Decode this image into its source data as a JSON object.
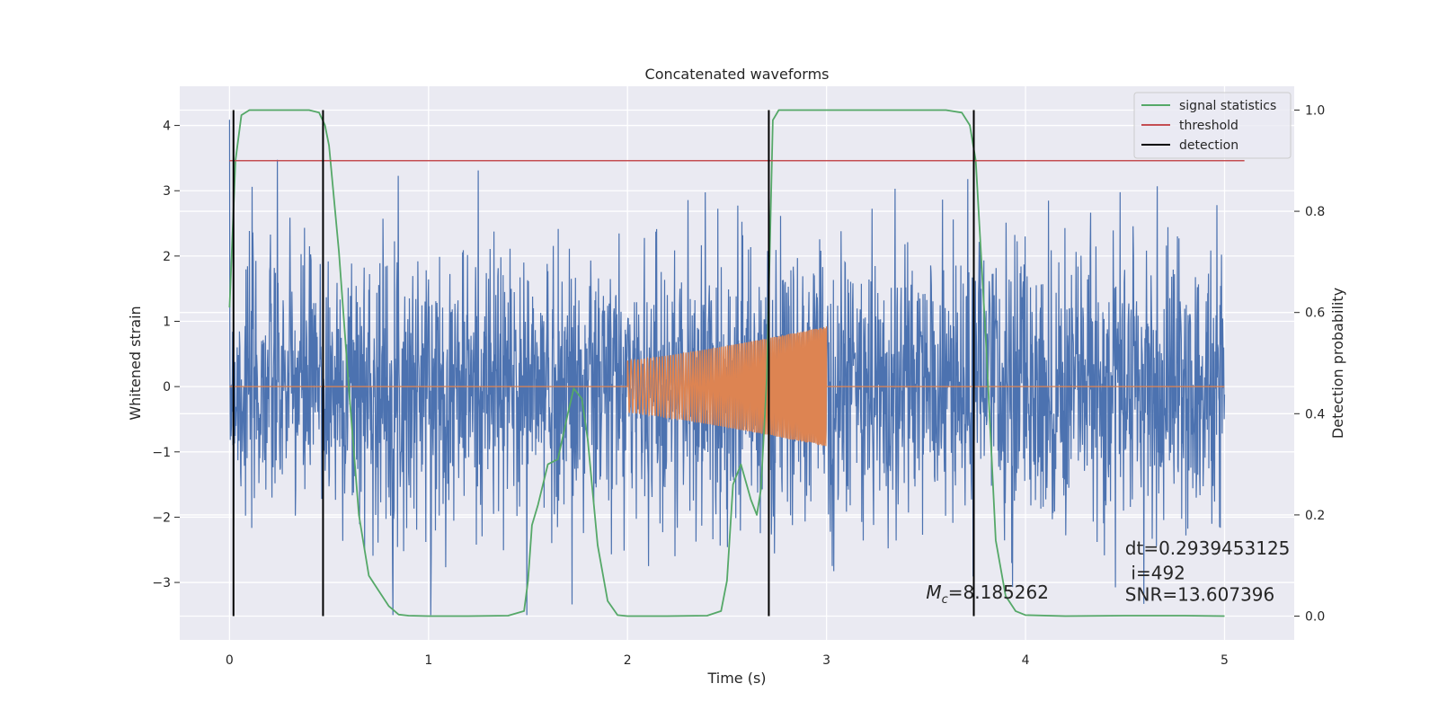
{
  "chart_data": {
    "type": "line",
    "title": "Concatenated waveforms",
    "xlabel": "Time (s)",
    "ylabel": "Whitened strain",
    "ylabel_right": "Detection probability",
    "xlim": [
      -0.25,
      5.35
    ],
    "ylim": [
      -3.88,
      4.6
    ],
    "ylim_right": [
      -0.047,
      1.047
    ],
    "x_ticks": [
      0,
      1,
      2,
      3,
      4,
      5
    ],
    "y_ticks": [
      -3,
      -2,
      -1,
      0,
      1,
      2,
      3,
      4
    ],
    "y_ticks_right": [
      0.0,
      0.2,
      0.4,
      0.6,
      0.8,
      1.0
    ],
    "x_tick_labels": [
      "0",
      "1",
      "2",
      "3",
      "4",
      "5"
    ],
    "y_tick_labels": [
      "−3",
      "−2",
      "−1",
      "0",
      "1",
      "2",
      "3",
      "4"
    ],
    "y_tick_labels_right": [
      "0.0",
      "0.2",
      "0.4",
      "0.6",
      "0.8",
      "1.0"
    ],
    "grid": true,
    "legend_position": "top-right",
    "legend": [
      {
        "label": "signal statistics",
        "color": "#55a868"
      },
      {
        "label": "threshold",
        "color": "#c44e52"
      },
      {
        "label": "detection",
        "color": "#000000"
      }
    ],
    "series": [
      {
        "name": "signal statistics",
        "axis": "right",
        "color": "#55a868",
        "x": [
          0.0,
          0.03,
          0.06,
          0.1,
          0.2,
          0.3,
          0.4,
          0.45,
          0.48,
          0.5,
          0.55,
          0.6,
          0.65,
          0.7,
          0.75,
          0.8,
          0.85,
          0.9,
          1.0,
          1.2,
          1.4,
          1.48,
          1.5,
          1.52,
          1.55,
          1.6,
          1.65,
          1.7,
          1.73,
          1.77,
          1.8,
          1.85,
          1.9,
          1.95,
          2.0,
          2.2,
          2.4,
          2.47,
          2.5,
          2.53,
          2.57,
          2.62,
          2.65,
          2.67,
          2.7,
          2.73,
          2.76,
          2.8,
          3.0,
          3.3,
          3.6,
          3.68,
          3.72,
          3.75,
          3.8,
          3.85,
          3.9,
          3.95,
          4.0,
          4.2,
          4.5,
          4.8,
          5.0
        ],
        "y": [
          0.61,
          0.9,
          0.99,
          1.0,
          1.0,
          1.0,
          1.0,
          0.995,
          0.97,
          0.93,
          0.72,
          0.45,
          0.2,
          0.08,
          0.05,
          0.02,
          0.003,
          0.001,
          0.0,
          0.0,
          0.001,
          0.01,
          0.07,
          0.18,
          0.22,
          0.3,
          0.31,
          0.4,
          0.45,
          0.43,
          0.35,
          0.14,
          0.03,
          0.002,
          0.0,
          0.0,
          0.001,
          0.01,
          0.07,
          0.26,
          0.3,
          0.23,
          0.2,
          0.25,
          0.47,
          0.98,
          1.0,
          1.0,
          1.0,
          1.0,
          1.0,
          0.995,
          0.97,
          0.9,
          0.55,
          0.15,
          0.04,
          0.01,
          0.002,
          0.0,
          0.001,
          0.001,
          0.0
        ]
      },
      {
        "name": "threshold",
        "axis": "right",
        "color": "#c44e52",
        "x": [
          0.0,
          5.1
        ],
        "y": [
          0.9,
          0.9
        ]
      },
      {
        "name": "detection",
        "axis": "right",
        "color": "#000000",
        "vlines": [
          0.02,
          0.47,
          2.71,
          3.74
        ],
        "y_range": [
          0.0,
          1.0
        ]
      }
    ],
    "noise_style": {
      "color": "#4c72b0",
      "x_range": [
        0.0,
        5.0
      ],
      "min": -3.5,
      "max": 4.4
    },
    "chirp_style": {
      "color": "#dd8452",
      "x_start": 2.0,
      "x_end": 3.0,
      "amp_start": 0.4,
      "amp_end": 0.92
    },
    "annotations": [
      {
        "id": "mc",
        "prefix": "M",
        "subscript": "c",
        "text": "=8.185262",
        "x": 3.5,
        "y": -3.25
      },
      {
        "id": "dt",
        "text": "dt=0.2939453125",
        "x": 4.5,
        "y": -2.57
      },
      {
        "id": "i",
        "text": "i=492",
        "x": 4.53,
        "y": -2.95
      },
      {
        "id": "snr",
        "text": "SNR=13.607396",
        "x": 4.5,
        "y": -3.28
      }
    ]
  }
}
